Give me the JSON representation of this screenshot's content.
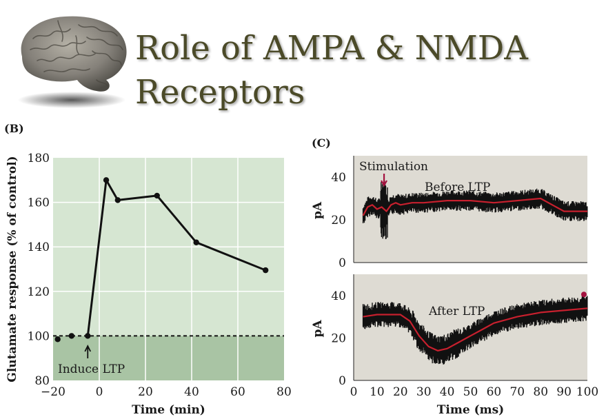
{
  "slide": {
    "title_line1": "Role of AMPA & NMDA",
    "title_line2": "Receptors"
  },
  "chart_data": [
    {
      "panel": "(B)",
      "type": "line",
      "xlabel": "Time (min)",
      "ylabel": "Glutamate response (% of control)",
      "xlim": [
        -20,
        80
      ],
      "ylim": [
        80,
        180
      ],
      "xticks": [
        "−20",
        "0",
        "20",
        "40",
        "60",
        "80"
      ],
      "yticks": [
        "80",
        "100",
        "120",
        "140",
        "160",
        "180"
      ],
      "grid": true,
      "baseline": 100,
      "x": [
        -18,
        -12,
        -5,
        3,
        8,
        25,
        42,
        72
      ],
      "y": [
        98.5,
        100,
        100,
        170,
        161,
        163,
        142,
        129.5
      ],
      "annotation": "Induce LTP",
      "annotation_x": -5,
      "colors": {
        "upper_band": "#d6e6d2",
        "lower_band": "#a9c4a4",
        "line": "#111111",
        "grid": "#ffffff"
      }
    },
    {
      "panel": "(C)",
      "type": "line",
      "xlabel": "Time (ms)",
      "xlim": [
        0,
        100
      ],
      "xticks": [
        "0",
        "10",
        "20",
        "30",
        "40",
        "50",
        "60",
        "70",
        "80",
        "90",
        "100"
      ],
      "colors": {
        "background": "#dedbd3",
        "noise": "#111111",
        "mean": "#c8202e",
        "marker": "#a3123f"
      },
      "subplots": [
        {
          "label": "Before LTP",
          "ylabel": "pA",
          "ylim": [
            0,
            50
          ],
          "yticks": [
            "0",
            "20",
            "40"
          ],
          "annotation": "Stimulation",
          "stimulation_x": 13,
          "mean": {
            "x": [
              4,
              6,
              8,
              10,
              12,
              14,
              16,
              18,
              20,
              25,
              30,
              40,
              50,
              60,
              70,
              80,
              85,
              90,
              95,
              100
            ],
            "y": [
              22,
              26,
              27,
              25,
              26,
              24,
              27,
              28,
              27,
              28,
              28,
              29,
              29,
              28,
              29,
              30,
              27,
              24,
              24,
              24
            ]
          },
          "noise_amplitude": 4
        },
        {
          "label": "After LTP",
          "ylabel": "pA",
          "ylim": [
            0,
            50
          ],
          "yticks": [
            "0",
            "20",
            "40"
          ],
          "mean": {
            "x": [
              4,
              10,
              20,
              24,
              28,
              32,
              36,
              40,
              45,
              50,
              55,
              60,
              70,
              80,
              90,
              100
            ],
            "y": [
              30,
              31,
              31,
              28,
              21,
              16,
              14,
              15,
              18,
              21,
              24,
              27,
              30,
              32,
              33,
              34
            ]
          },
          "noise_amplitude": 5
        }
      ]
    }
  ]
}
